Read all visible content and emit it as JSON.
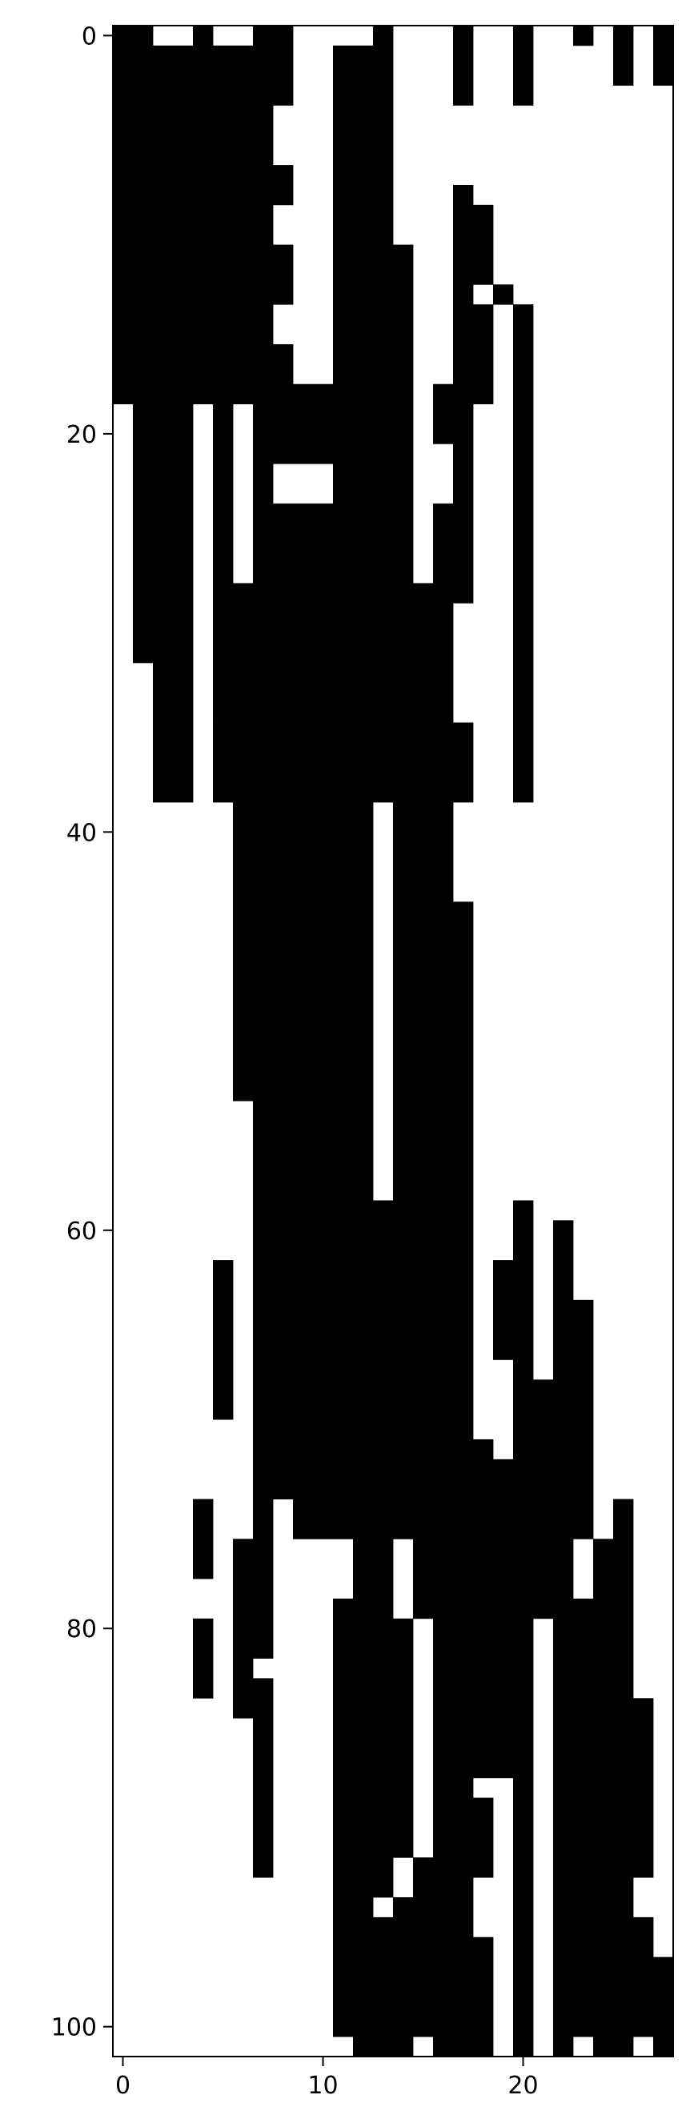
{
  "chart_data": {
    "type": "heatmap",
    "title": "",
    "xlabel": "",
    "ylabel": "",
    "colormap": "binary",
    "colors": {
      "one": "#000000",
      "zero": "#ffffff"
    },
    "n_rows": 102,
    "n_cols": 28,
    "xlim": [
      -0.5,
      27.5
    ],
    "ylim": [
      101.5,
      -0.5
    ],
    "x_ticks": [
      0,
      10,
      20
    ],
    "y_ticks": [
      0,
      20,
      40,
      60,
      80,
      100
    ],
    "grid": false,
    "note": "rows listed as runs of black (value 1) cells: [from_row, to_row, from_col, to_col]",
    "black_runs": [
      [
        0,
        0,
        0,
        1
      ],
      [
        0,
        0,
        4,
        4
      ],
      [
        0,
        0,
        7,
        8
      ],
      [
        0,
        0,
        13,
        13
      ],
      [
        0,
        0,
        17,
        17
      ],
      [
        0,
        0,
        20,
        20
      ],
      [
        0,
        0,
        23,
        23
      ],
      [
        0,
        0,
        25,
        25
      ],
      [
        0,
        0,
        27,
        27
      ],
      [
        1,
        2,
        0,
        8
      ],
      [
        1,
        2,
        11,
        13
      ],
      [
        1,
        2,
        17,
        17
      ],
      [
        1,
        2,
        20,
        20
      ],
      [
        1,
        2,
        25,
        25
      ],
      [
        1,
        2,
        27,
        27
      ],
      [
        3,
        3,
        0,
        8
      ],
      [
        3,
        3,
        11,
        13
      ],
      [
        3,
        3,
        17,
        17
      ],
      [
        3,
        3,
        20,
        20
      ],
      [
        4,
        6,
        0,
        7
      ],
      [
        4,
        6,
        11,
        13
      ],
      [
        7,
        7,
        0,
        8
      ],
      [
        7,
        7,
        11,
        13
      ],
      [
        8,
        8,
        0,
        8
      ],
      [
        8,
        8,
        11,
        13
      ],
      [
        8,
        8,
        17,
        17
      ],
      [
        9,
        10,
        0,
        7
      ],
      [
        9,
        10,
        11,
        13
      ],
      [
        9,
        10,
        17,
        18
      ],
      [
        11,
        12,
        0,
        8
      ],
      [
        11,
        12,
        11,
        14
      ],
      [
        11,
        12,
        17,
        18
      ],
      [
        13,
        13,
        0,
        8
      ],
      [
        13,
        13,
        11,
        14
      ],
      [
        13,
        13,
        17,
        17
      ],
      [
        13,
        13,
        19,
        19
      ],
      [
        14,
        15,
        0,
        7
      ],
      [
        14,
        15,
        11,
        14
      ],
      [
        14,
        15,
        17,
        18
      ],
      [
        14,
        15,
        20,
        20
      ],
      [
        16,
        17,
        0,
        8
      ],
      [
        16,
        17,
        11,
        14
      ],
      [
        16,
        17,
        17,
        18
      ],
      [
        16,
        17,
        20,
        20
      ],
      [
        18,
        18,
        0,
        14
      ],
      [
        18,
        18,
        16,
        18
      ],
      [
        18,
        18,
        20,
        20
      ],
      [
        19,
        20,
        1,
        3
      ],
      [
        19,
        20,
        5,
        5
      ],
      [
        19,
        20,
        7,
        14
      ],
      [
        19,
        20,
        16,
        17
      ],
      [
        19,
        20,
        20,
        20
      ],
      [
        21,
        21,
        1,
        3
      ],
      [
        21,
        21,
        5,
        5
      ],
      [
        21,
        21,
        7,
        14
      ],
      [
        21,
        21,
        17,
        17
      ],
      [
        21,
        21,
        20,
        20
      ],
      [
        22,
        23,
        1,
        3
      ],
      [
        22,
        23,
        5,
        5
      ],
      [
        22,
        23,
        7,
        7
      ],
      [
        22,
        23,
        11,
        14
      ],
      [
        22,
        23,
        17,
        17
      ],
      [
        22,
        23,
        20,
        20
      ],
      [
        24,
        27,
        1,
        3
      ],
      [
        24,
        27,
        5,
        5
      ],
      [
        24,
        27,
        7,
        14
      ],
      [
        24,
        27,
        16,
        17
      ],
      [
        24,
        27,
        20,
        20
      ],
      [
        28,
        28,
        1,
        3
      ],
      [
        28,
        28,
        5,
        17
      ],
      [
        28,
        28,
        20,
        20
      ],
      [
        29,
        31,
        1,
        3
      ],
      [
        29,
        31,
        5,
        16
      ],
      [
        29,
        31,
        20,
        20
      ],
      [
        32,
        34,
        2,
        3
      ],
      [
        32,
        34,
        5,
        16
      ],
      [
        32,
        34,
        20,
        20
      ],
      [
        35,
        38,
        2,
        3
      ],
      [
        35,
        38,
        5,
        17
      ],
      [
        35,
        38,
        20,
        20
      ],
      [
        39,
        43,
        6,
        12
      ],
      [
        39,
        43,
        14,
        16
      ],
      [
        44,
        53,
        6,
        12
      ],
      [
        44,
        53,
        14,
        17
      ],
      [
        54,
        58,
        7,
        12
      ],
      [
        54,
        58,
        14,
        17
      ],
      [
        59,
        59,
        7,
        17
      ],
      [
        59,
        59,
        20,
        20
      ],
      [
        60,
        61,
        7,
        17
      ],
      [
        60,
        61,
        20,
        20
      ],
      [
        60,
        61,
        22,
        22
      ],
      [
        62,
        62,
        5,
        5
      ],
      [
        62,
        62,
        7,
        17
      ],
      [
        62,
        62,
        19,
        20
      ],
      [
        62,
        62,
        22,
        22
      ],
      [
        63,
        63,
        5,
        5
      ],
      [
        63,
        63,
        7,
        17
      ],
      [
        63,
        63,
        19,
        20
      ],
      [
        63,
        63,
        22,
        22
      ],
      [
        64,
        66,
        5,
        5
      ],
      [
        64,
        66,
        7,
        17
      ],
      [
        64,
        66,
        19,
        20
      ],
      [
        64,
        66,
        22,
        23
      ],
      [
        67,
        67,
        5,
        5
      ],
      [
        67,
        67,
        7,
        17
      ],
      [
        67,
        67,
        20,
        20
      ],
      [
        67,
        67,
        22,
        23
      ],
      [
        68,
        68,
        5,
        5
      ],
      [
        68,
        68,
        7,
        17
      ],
      [
        68,
        68,
        20,
        23
      ],
      [
        69,
        69,
        5,
        5
      ],
      [
        69,
        69,
        7,
        17
      ],
      [
        69,
        69,
        20,
        23
      ],
      [
        70,
        70,
        7,
        17
      ],
      [
        70,
        70,
        20,
        23
      ],
      [
        71,
        71,
        7,
        18
      ],
      [
        71,
        71,
        20,
        23
      ],
      [
        72,
        73,
        7,
        23
      ],
      [
        74,
        74,
        4,
        4
      ],
      [
        74,
        74,
        7,
        7
      ],
      [
        74,
        74,
        9,
        23
      ],
      [
        74,
        74,
        25,
        25
      ],
      [
        75,
        75,
        4,
        4
      ],
      [
        75,
        75,
        7,
        7
      ],
      [
        75,
        75,
        9,
        23
      ],
      [
        75,
        75,
        25,
        25
      ],
      [
        76,
        77,
        4,
        4
      ],
      [
        76,
        77,
        6,
        7
      ],
      [
        76,
        77,
        12,
        13
      ],
      [
        76,
        77,
        15,
        22
      ],
      [
        76,
        77,
        24,
        25
      ],
      [
        78,
        78,
        6,
        7
      ],
      [
        78,
        78,
        12,
        13
      ],
      [
        78,
        78,
        15,
        22
      ],
      [
        78,
        78,
        24,
        25
      ],
      [
        79,
        79,
        6,
        7
      ],
      [
        79,
        79,
        11,
        13
      ],
      [
        79,
        79,
        15,
        23
      ],
      [
        79,
        79,
        24,
        25
      ],
      [
        80,
        81,
        4,
        4
      ],
      [
        80,
        81,
        6,
        7
      ],
      [
        80,
        81,
        11,
        14
      ],
      [
        80,
        81,
        16,
        20
      ],
      [
        80,
        81,
        22,
        25
      ],
      [
        82,
        82,
        4,
        4
      ],
      [
        82,
        82,
        6,
        6
      ],
      [
        82,
        82,
        11,
        14
      ],
      [
        82,
        82,
        16,
        20
      ],
      [
        82,
        82,
        22,
        25
      ],
      [
        83,
        83,
        4,
        4
      ],
      [
        83,
        83,
        6,
        6
      ],
      [
        83,
        83,
        7,
        7
      ],
      [
        83,
        83,
        11,
        14
      ],
      [
        83,
        83,
        16,
        20
      ],
      [
        83,
        83,
        22,
        25
      ],
      [
        84,
        84,
        6,
        7
      ],
      [
        84,
        84,
        11,
        14
      ],
      [
        84,
        84,
        16,
        20
      ],
      [
        84,
        84,
        22,
        26
      ],
      [
        85,
        87,
        7,
        7
      ],
      [
        85,
        87,
        11,
        14
      ],
      [
        85,
        87,
        16,
        20
      ],
      [
        85,
        87,
        22,
        26
      ],
      [
        88,
        88,
        7,
        7
      ],
      [
        88,
        88,
        11,
        14
      ],
      [
        88,
        88,
        16,
        17
      ],
      [
        88,
        88,
        20,
        20
      ],
      [
        88,
        88,
        22,
        26
      ],
      [
        89,
        91,
        7,
        7
      ],
      [
        89,
        91,
        11,
        14
      ],
      [
        89,
        91,
        16,
        18
      ],
      [
        89,
        91,
        20,
        20
      ],
      [
        89,
        91,
        22,
        26
      ],
      [
        92,
        92,
        7,
        7
      ],
      [
        92,
        92,
        11,
        13
      ],
      [
        92,
        92,
        15,
        18
      ],
      [
        92,
        92,
        20,
        20
      ],
      [
        92,
        92,
        22,
        26
      ],
      [
        93,
        93,
        11,
        13
      ],
      [
        93,
        93,
        15,
        17
      ],
      [
        93,
        93,
        20,
        20
      ],
      [
        93,
        93,
        22,
        25
      ],
      [
        94,
        94,
        11,
        12
      ],
      [
        94,
        94,
        14,
        17
      ],
      [
        94,
        94,
        20,
        20
      ],
      [
        94,
        94,
        22,
        25
      ],
      [
        95,
        95,
        11,
        17
      ],
      [
        95,
        95,
        20,
        20
      ],
      [
        95,
        95,
        22,
        26
      ],
      [
        96,
        96,
        11,
        18
      ],
      [
        96,
        96,
        20,
        20
      ],
      [
        96,
        96,
        22,
        26
      ],
      [
        97,
        100,
        11,
        18
      ],
      [
        97,
        100,
        20,
        20
      ],
      [
        97,
        100,
        22,
        27
      ],
      [
        101,
        101,
        12,
        14
      ],
      [
        101,
        101,
        16,
        18
      ],
      [
        101,
        101,
        20,
        20
      ],
      [
        101,
        101,
        22,
        22
      ],
      [
        101,
        101,
        24,
        25
      ],
      [
        101,
        101,
        27,
        27
      ]
    ]
  }
}
